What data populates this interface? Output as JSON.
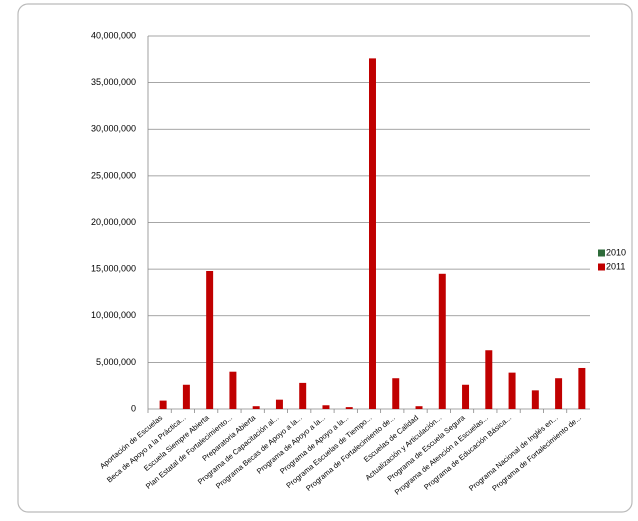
{
  "chart_data": {
    "type": "bar",
    "categories": [
      "Aportación de Escuelas",
      "Beca de Apoyo a la Práctica...",
      "Escuela Siempre Abierta",
      "Plan Estatal de Fortalecimiento...",
      "Preparatoria Abierta",
      "Programa de Capacitación al...",
      "Programa Becas de Apoyo a la...",
      "Programa de Apoyo a la...",
      "Programa de Apoyo a la...",
      "Programa Escuelas de Tiempo...",
      "Programa de Fortalecimiento de...",
      "Escuelas de Calidad",
      "Actualización y Articulación...",
      "Programa de Escuela Segura",
      "Programa de Atención a Escuelas...",
      "Programa de Educación Básica...",
      null,
      "Programa Nacional de Inglés en...",
      "Programa de Fortalecimiento de..."
    ],
    "series": [
      {
        "name": "2010",
        "color": "#2e6b3a",
        "values": [
          0,
          0,
          0,
          0,
          0,
          0,
          0,
          0,
          0,
          0,
          0,
          0,
          0,
          0,
          0,
          0,
          0,
          0,
          0
        ]
      },
      {
        "name": "2011",
        "color": "#c00000",
        "values": [
          900000,
          2600000,
          14800000,
          4000000,
          300000,
          1000000,
          2800000,
          400000,
          200000,
          37600000,
          3300000,
          300000,
          14500000,
          2600000,
          6300000,
          3900000,
          2000000,
          3300000,
          4400000
        ]
      }
    ],
    "ylim": [
      0,
      40000000
    ],
    "yticks": [
      0,
      {
        "value": 5000000,
        "label": "5,000,000"
      },
      {
        "value": 10000000,
        "label": "10,000,000"
      },
      {
        "value": 15000000,
        "label": "15,000,000"
      },
      {
        "value": 20000000,
        "label": "20,000,000"
      },
      {
        "value": 25000000,
        "label": "25,000,000"
      },
      {
        "value": 30000000,
        "label": "30,000,000"
      },
      {
        "value": 35000000,
        "label": "35,000,000"
      },
      {
        "value": 40000000,
        "label": "40,000,000"
      }
    ],
    "grid": true,
    "legend": "right"
  }
}
